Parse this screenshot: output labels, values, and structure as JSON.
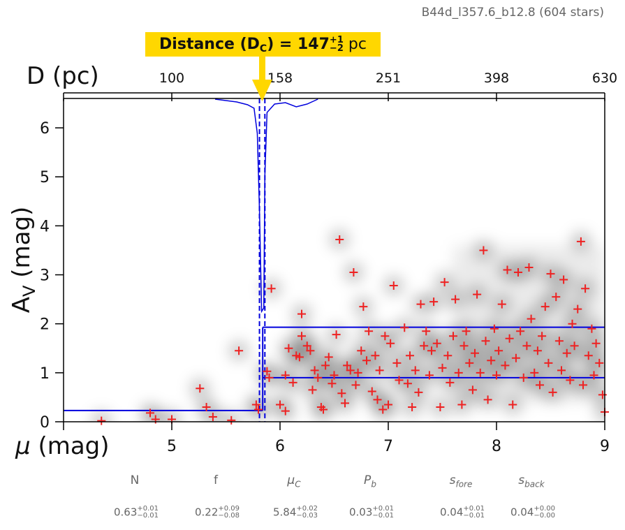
{
  "header": {
    "field_label": "B44d_l357.6_b12.8 (604 stars)",
    "distance_label": "Distance (D",
    "distance_sub": "C",
    "distance_eq": ") = 147",
    "distance_plus": "+1",
    "distance_minus": "−2",
    "distance_unit": "pc"
  },
  "params": [
    {
      "name": "N",
      "value": "0.63",
      "plus": "+0.01",
      "minus": "−0.01"
    },
    {
      "name": "f",
      "value": "0.22",
      "plus": "+0.09",
      "minus": "−0.08"
    },
    {
      "name": "μ",
      "sub": "C",
      "value": "5.84",
      "plus": "+0.02",
      "minus": "−0.03"
    },
    {
      "name": "P",
      "sub": "b",
      "value": "0.03",
      "plus": "+0.01",
      "minus": "−0.01"
    },
    {
      "name": "s",
      "sub": "fore",
      "value": "0.04",
      "plus": "+0.01",
      "minus": "−0.01"
    },
    {
      "name": "s",
      "sub": "back",
      "value": "0.04",
      "plus": "+0.00",
      "minus": "−0.00"
    }
  ],
  "chart_data": {
    "type": "scatter",
    "xlabel": "μ (mag)",
    "ylabel": "A",
    "ylabel_sub": "V",
    "ylabel_unit": " (mag)",
    "top_xlabel": "D (pc)",
    "xlim": [
      4,
      9
    ],
    "ylim": [
      0,
      6.6
    ],
    "xticks": [
      5,
      6,
      7,
      8,
      9
    ],
    "yticks": [
      0,
      1,
      2,
      3,
      4,
      5,
      6
    ],
    "top_ticks": [
      {
        "mu": 5.0,
        "label": "100"
      },
      {
        "mu": 6.0,
        "label": "158"
      },
      {
        "mu": 7.0,
        "label": "251"
      },
      {
        "mu": 8.0,
        "label": "398"
      },
      {
        "mu": 9.0,
        "label": "630"
      }
    ],
    "colors": {
      "points": "#ee2222",
      "model": "#0000dd",
      "box": "#FFD700",
      "arrow": "#FFD700"
    },
    "model_steps": [
      {
        "mu0": 4.0,
        "mu1": 5.84,
        "av": 0.23
      },
      {
        "mu0": 5.84,
        "mu1": 9.0,
        "av_low": 0.9,
        "av_high": 1.93
      }
    ],
    "distance_mu": 5.84,
    "distance_mu_err": [
      5.81,
      5.86
    ],
    "points": [
      [
        4.35,
        0.02
      ],
      [
        4.8,
        0.18
      ],
      [
        4.85,
        0.05
      ],
      [
        5.0,
        0.05
      ],
      [
        5.26,
        0.68
      ],
      [
        5.32,
        0.3
      ],
      [
        5.38,
        0.1
      ],
      [
        5.55,
        0.03
      ],
      [
        5.62,
        1.45
      ],
      [
        5.78,
        0.35
      ],
      [
        5.8,
        0.25
      ],
      [
        5.88,
        1.03
      ],
      [
        5.9,
        0.9
      ],
      [
        5.92,
        2.72
      ],
      [
        6.0,
        0.35
      ],
      [
        6.05,
        0.22
      ],
      [
        6.05,
        0.95
      ],
      [
        6.08,
        1.5
      ],
      [
        6.12,
        0.8
      ],
      [
        6.15,
        1.35
      ],
      [
        6.18,
        1.32
      ],
      [
        6.2,
        2.2
      ],
      [
        6.2,
        1.75
      ],
      [
        6.25,
        1.55
      ],
      [
        6.28,
        1.45
      ],
      [
        6.3,
        0.65
      ],
      [
        6.32,
        1.05
      ],
      [
        6.35,
        0.9
      ],
      [
        6.38,
        0.3
      ],
      [
        6.4,
        0.25
      ],
      [
        6.42,
        1.15
      ],
      [
        6.45,
        1.32
      ],
      [
        6.48,
        0.78
      ],
      [
        6.5,
        0.95
      ],
      [
        6.52,
        1.78
      ],
      [
        6.55,
        3.72
      ],
      [
        6.57,
        0.58
      ],
      [
        6.6,
        0.38
      ],
      [
        6.62,
        1.15
      ],
      [
        6.65,
        1.05
      ],
      [
        6.68,
        3.05
      ],
      [
        6.7,
        0.75
      ],
      [
        6.72,
        1.0
      ],
      [
        6.75,
        1.45
      ],
      [
        6.77,
        2.35
      ],
      [
        6.8,
        1.25
      ],
      [
        6.82,
        1.85
      ],
      [
        6.85,
        0.62
      ],
      [
        6.88,
        1.35
      ],
      [
        6.9,
        0.45
      ],
      [
        6.92,
        1.05
      ],
      [
        6.95,
        0.25
      ],
      [
        6.97,
        1.75
      ],
      [
        7.0,
        0.35
      ],
      [
        7.02,
        1.6
      ],
      [
        7.05,
        2.78
      ],
      [
        7.08,
        1.2
      ],
      [
        7.1,
        0.85
      ],
      [
        7.15,
        1.92
      ],
      [
        7.18,
        0.78
      ],
      [
        7.2,
        1.35
      ],
      [
        7.22,
        0.3
      ],
      [
        7.25,
        1.05
      ],
      [
        7.28,
        0.6
      ],
      [
        7.3,
        2.4
      ],
      [
        7.33,
        1.55
      ],
      [
        7.35,
        1.85
      ],
      [
        7.38,
        0.95
      ],
      [
        7.4,
        1.45
      ],
      [
        7.42,
        2.45
      ],
      [
        7.45,
        1.6
      ],
      [
        7.48,
        0.3
      ],
      [
        7.5,
        1.1
      ],
      [
        7.52,
        2.85
      ],
      [
        7.55,
        1.35
      ],
      [
        7.57,
        0.8
      ],
      [
        7.6,
        1.75
      ],
      [
        7.62,
        2.5
      ],
      [
        7.65,
        1.0
      ],
      [
        7.68,
        0.35
      ],
      [
        7.7,
        1.55
      ],
      [
        7.72,
        1.85
      ],
      [
        7.75,
        1.2
      ],
      [
        7.78,
        0.65
      ],
      [
        7.8,
        1.4
      ],
      [
        7.82,
        2.6
      ],
      [
        7.85,
        1.0
      ],
      [
        7.88,
        3.5
      ],
      [
        7.9,
        1.65
      ],
      [
        7.92,
        0.45
      ],
      [
        7.95,
        1.25
      ],
      [
        7.98,
        1.9
      ],
      [
        8.0,
        0.95
      ],
      [
        8.02,
        1.45
      ],
      [
        8.05,
        2.4
      ],
      [
        8.08,
        1.15
      ],
      [
        8.1,
        3.1
      ],
      [
        8.12,
        1.7
      ],
      [
        8.15,
        0.35
      ],
      [
        8.18,
        1.3
      ],
      [
        8.2,
        3.05
      ],
      [
        8.22,
        1.85
      ],
      [
        8.25,
        0.9
      ],
      [
        8.28,
        1.55
      ],
      [
        8.3,
        3.15
      ],
      [
        8.32,
        2.1
      ],
      [
        8.35,
        1.0
      ],
      [
        8.38,
        1.45
      ],
      [
        8.4,
        0.75
      ],
      [
        8.42,
        1.75
      ],
      [
        8.45,
        2.35
      ],
      [
        8.48,
        1.2
      ],
      [
        8.5,
        3.02
      ],
      [
        8.52,
        0.6
      ],
      [
        8.55,
        2.55
      ],
      [
        8.58,
        1.65
      ],
      [
        8.6,
        1.05
      ],
      [
        8.62,
        2.9
      ],
      [
        8.65,
        1.4
      ],
      [
        8.68,
        0.85
      ],
      [
        8.7,
        2.0
      ],
      [
        8.72,
        1.55
      ],
      [
        8.75,
        2.3
      ],
      [
        8.78,
        3.68
      ],
      [
        8.8,
        0.75
      ],
      [
        8.82,
        2.72
      ],
      [
        8.85,
        1.35
      ],
      [
        8.88,
        1.9
      ],
      [
        8.9,
        0.95
      ],
      [
        8.92,
        1.6
      ],
      [
        8.95,
        1.2
      ],
      [
        8.98,
        0.55
      ],
      [
        9.0,
        0.2
      ]
    ]
  }
}
